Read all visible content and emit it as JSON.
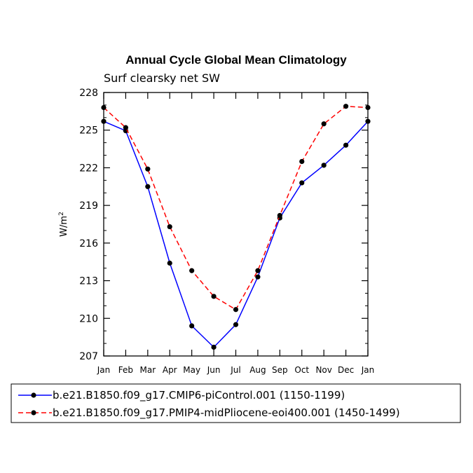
{
  "chart_data": {
    "type": "line",
    "title": "Annual Cycle Global Mean Climatology",
    "subtitle": "Surf clearsky net SW",
    "ylabel": "W/m",
    "ylabel_superscript": "2",
    "xlabel": "",
    "ylim": [
      207,
      228
    ],
    "yticks": [
      "207",
      "210",
      "213",
      "216",
      "219",
      "222",
      "225",
      "228"
    ],
    "categories": [
      "Jan",
      "Feb",
      "Mar",
      "Apr",
      "May",
      "Jun",
      "Jul",
      "Aug",
      "Sep",
      "Oct",
      "Nov",
      "Dec",
      "Jan"
    ],
    "series": [
      {
        "name": "b.e21.B1850.f09_g17.CMIP6-piControl.001 (1150-1199)",
        "color": "#0000ff",
        "dash": "solid",
        "values": [
          225.7,
          224.95,
          220.5,
          214.4,
          209.4,
          207.7,
          209.5,
          213.3,
          218.0,
          220.8,
          222.2,
          223.8,
          225.7
        ]
      },
      {
        "name": "b.e21.B1850.f09_g17.PMIP4-midPliocene-eoi400.001 (1450-1499)",
        "color": "#ff0000",
        "dash": "dashed",
        "values": [
          226.8,
          225.2,
          221.9,
          217.3,
          213.8,
          211.75,
          210.7,
          213.8,
          218.2,
          222.5,
          225.5,
          226.9,
          226.8
        ]
      }
    ],
    "legend_position": "bottom-left",
    "grid": false
  }
}
